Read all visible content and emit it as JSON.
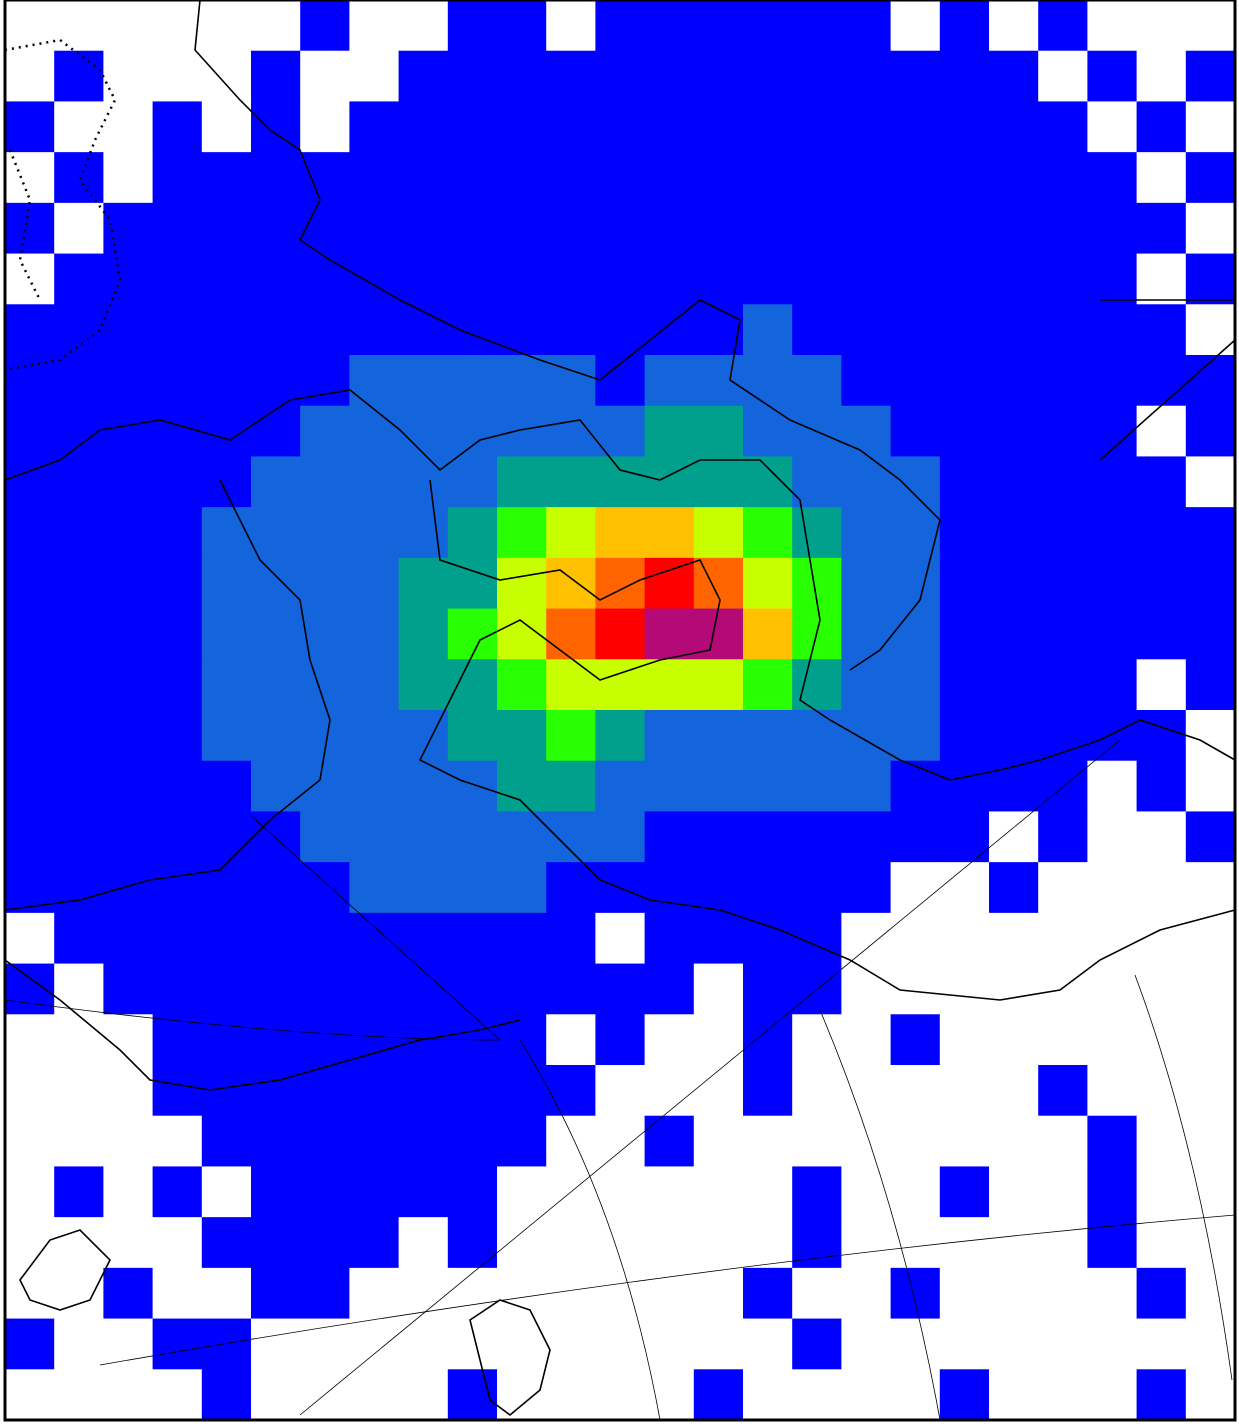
{
  "map": {
    "type": "heatmap",
    "colors": [
      "#ffffff",
      "#0000ff",
      "#1464dc",
      "#00a08c",
      "#28ff00",
      "#c8ff00",
      "#ffc000",
      "#ff6400",
      "#ff0000",
      "#b40a78"
    ],
    "grid": [
      [
        0,
        0,
        0,
        0,
        0,
        0,
        1,
        0,
        0,
        1,
        1,
        0,
        1,
        1,
        1,
        1,
        1,
        1,
        0,
        1,
        0,
        1,
        0,
        0,
        0
      ],
      [
        0,
        1,
        0,
        0,
        0,
        1,
        0,
        0,
        1,
        1,
        1,
        1,
        1,
        1,
        1,
        1,
        1,
        1,
        1,
        1,
        1,
        0,
        1,
        0,
        1
      ],
      [
        1,
        0,
        0,
        1,
        0,
        1,
        0,
        1,
        1,
        1,
        1,
        1,
        1,
        1,
        1,
        1,
        1,
        1,
        1,
        1,
        1,
        1,
        0,
        1,
        0
      ],
      [
        0,
        1,
        0,
        1,
        1,
        1,
        1,
        1,
        1,
        1,
        1,
        1,
        1,
        1,
        1,
        1,
        1,
        1,
        1,
        1,
        1,
        1,
        1,
        0,
        1
      ],
      [
        1,
        0,
        1,
        1,
        1,
        1,
        1,
        1,
        1,
        1,
        1,
        1,
        1,
        1,
        1,
        1,
        1,
        1,
        1,
        1,
        1,
        1,
        1,
        1,
        0
      ],
      [
        0,
        1,
        1,
        1,
        1,
        1,
        1,
        1,
        1,
        1,
        1,
        1,
        1,
        1,
        1,
        1,
        1,
        1,
        1,
        1,
        1,
        1,
        1,
        0,
        1
      ],
      [
        1,
        1,
        1,
        1,
        1,
        1,
        1,
        1,
        1,
        1,
        1,
        1,
        1,
        1,
        1,
        2,
        1,
        1,
        1,
        1,
        1,
        1,
        1,
        1,
        0
      ],
      [
        1,
        1,
        1,
        1,
        1,
        1,
        1,
        2,
        2,
        2,
        2,
        2,
        1,
        2,
        2,
        2,
        2,
        1,
        1,
        1,
        1,
        1,
        1,
        1,
        1
      ],
      [
        1,
        1,
        1,
        1,
        1,
        1,
        2,
        2,
        2,
        2,
        2,
        2,
        2,
        3,
        3,
        2,
        2,
        2,
        1,
        1,
        1,
        1,
        1,
        0,
        1
      ],
      [
        1,
        1,
        1,
        1,
        1,
        2,
        2,
        2,
        2,
        2,
        3,
        3,
        3,
        3,
        3,
        3,
        2,
        2,
        2,
        1,
        1,
        1,
        1,
        1,
        0
      ],
      [
        1,
        1,
        1,
        1,
        2,
        2,
        2,
        2,
        2,
        3,
        4,
        5,
        6,
        6,
        5,
        4,
        3,
        2,
        2,
        1,
        1,
        1,
        1,
        1,
        1
      ],
      [
        1,
        1,
        1,
        1,
        2,
        2,
        2,
        2,
        3,
        3,
        5,
        6,
        7,
        8,
        7,
        5,
        4,
        2,
        2,
        1,
        1,
        1,
        1,
        1,
        1
      ],
      [
        1,
        1,
        1,
        1,
        2,
        2,
        2,
        2,
        3,
        4,
        5,
        7,
        8,
        9,
        9,
        6,
        4,
        2,
        2,
        1,
        1,
        1,
        1,
        1,
        1
      ],
      [
        1,
        1,
        1,
        1,
        2,
        2,
        2,
        2,
        3,
        3,
        4,
        5,
        5,
        5,
        5,
        4,
        3,
        2,
        2,
        1,
        1,
        1,
        1,
        0,
        1
      ],
      [
        1,
        1,
        1,
        1,
        2,
        2,
        2,
        2,
        2,
        3,
        3,
        4,
        3,
        2,
        2,
        2,
        2,
        2,
        2,
        1,
        1,
        1,
        1,
        1,
        0
      ],
      [
        1,
        1,
        1,
        1,
        1,
        2,
        2,
        2,
        2,
        2,
        3,
        3,
        2,
        2,
        2,
        2,
        2,
        2,
        1,
        1,
        1,
        1,
        0,
        1,
        0
      ],
      [
        1,
        1,
        1,
        1,
        1,
        1,
        2,
        2,
        2,
        2,
        2,
        2,
        2,
        1,
        1,
        1,
        1,
        1,
        1,
        1,
        0,
        1,
        0,
        0,
        1
      ],
      [
        1,
        1,
        1,
        1,
        1,
        1,
        1,
        2,
        2,
        2,
        2,
        1,
        1,
        1,
        1,
        1,
        1,
        1,
        0,
        0,
        1,
        0,
        0,
        0,
        0
      ],
      [
        0,
        1,
        1,
        1,
        1,
        1,
        1,
        1,
        1,
        1,
        1,
        1,
        0,
        1,
        1,
        1,
        1,
        0,
        0,
        0,
        0,
        0,
        0,
        0,
        0
      ],
      [
        1,
        0,
        1,
        1,
        1,
        1,
        1,
        1,
        1,
        1,
        1,
        1,
        1,
        1,
        0,
        1,
        1,
        0,
        0,
        0,
        0,
        0,
        0,
        0,
        0
      ],
      [
        0,
        0,
        0,
        1,
        1,
        1,
        1,
        1,
        1,
        1,
        1,
        0,
        1,
        0,
        0,
        1,
        0,
        0,
        1,
        0,
        0,
        0,
        0,
        0,
        0
      ],
      [
        0,
        0,
        0,
        1,
        1,
        1,
        1,
        1,
        1,
        1,
        1,
        1,
        0,
        0,
        0,
        1,
        0,
        0,
        0,
        0,
        0,
        1,
        0,
        0,
        0
      ],
      [
        0,
        0,
        0,
        0,
        1,
        1,
        1,
        1,
        1,
        1,
        1,
        0,
        0,
        1,
        0,
        0,
        0,
        0,
        0,
        0,
        0,
        0,
        1,
        0,
        0
      ],
      [
        0,
        1,
        0,
        1,
        0,
        1,
        1,
        1,
        1,
        1,
        0,
        0,
        0,
        0,
        0,
        0,
        1,
        0,
        0,
        1,
        0,
        0,
        1,
        0,
        0
      ],
      [
        0,
        0,
        0,
        0,
        1,
        1,
        1,
        1,
        0,
        1,
        0,
        0,
        0,
        0,
        0,
        0,
        1,
        0,
        0,
        0,
        0,
        0,
        1,
        0,
        0
      ],
      [
        0,
        0,
        1,
        0,
        0,
        1,
        1,
        0,
        0,
        0,
        0,
        0,
        0,
        0,
        0,
        1,
        0,
        0,
        1,
        0,
        0,
        0,
        0,
        1,
        0
      ],
      [
        1,
        0,
        0,
        1,
        1,
        0,
        0,
        0,
        0,
        0,
        0,
        0,
        0,
        0,
        0,
        0,
        1,
        0,
        0,
        0,
        0,
        0,
        0,
        0,
        0
      ],
      [
        0,
        0,
        0,
        0,
        1,
        0,
        0,
        0,
        0,
        1,
        0,
        0,
        0,
        0,
        1,
        0,
        0,
        0,
        0,
        1,
        0,
        0,
        0,
        1,
        0
      ]
    ]
  }
}
